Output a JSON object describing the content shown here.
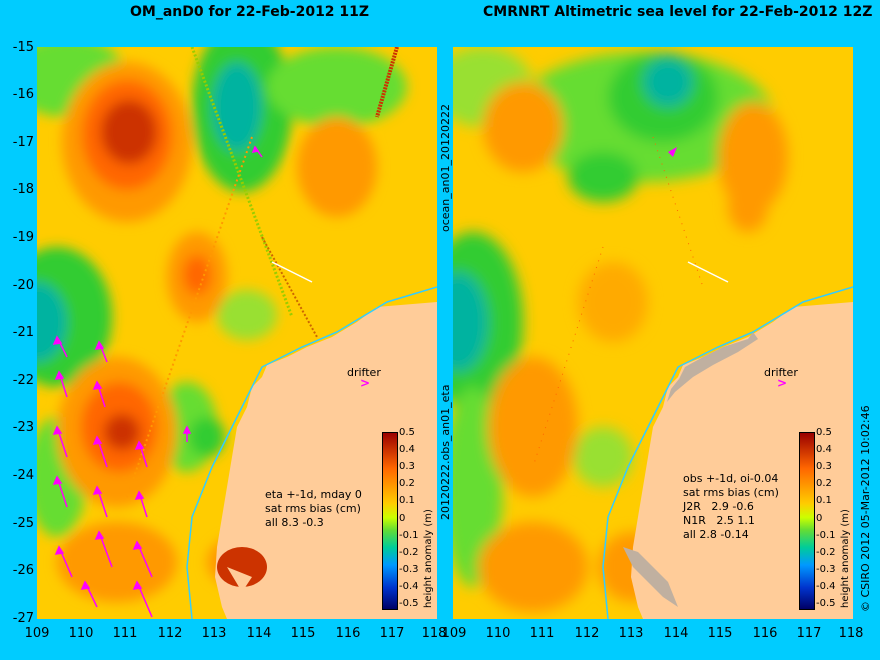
{
  "titles": {
    "left": "OM_anD0 for 22-Feb-2012 11Z",
    "right": "CMRNRT Altimetric sea level  for 22-Feb-2012 12Z"
  },
  "y_ticks": [
    "-15",
    "-16",
    "-17",
    "-18",
    "-19",
    "-20",
    "-21",
    "-22",
    "-23",
    "-24",
    "-25",
    "-26",
    "-27"
  ],
  "x_ticks": [
    "109",
    "110",
    "111",
    "112",
    "113",
    "114",
    "115",
    "116",
    "117",
    "118"
  ],
  "side_label_middle": "20120222.obs_an01_eta",
  "side_label_middle_top": "ocean_an01_20120222",
  "side_label_right": "© CSIRO 2012  05-Mar-2012 10:02:46",
  "drifter_label": "drifter",
  "drifter_symbol": ">",
  "colorbar": {
    "label": "height anomaly (m)",
    "ticks": [
      "0.5",
      "0.4",
      "0.3",
      "0.2",
      "0.1",
      "0",
      "-0.1",
      "-0.2",
      "-0.3",
      "-0.4",
      "-0.5"
    ]
  },
  "stats_left": "eta +-1d, mday 0\nsat rms bias (cm)\nall 8.3 -0.3",
  "stats_right": "obs +-1d, oi-0.04\nsat rms bias (cm)\nJ2R   2.9 -0.6\nN1R   2.5 1.1\nall 2.8 -0.14",
  "colors": {
    "background": "#00ccff",
    "land": "#ffcc99",
    "vectors": "#ff00ff"
  }
}
